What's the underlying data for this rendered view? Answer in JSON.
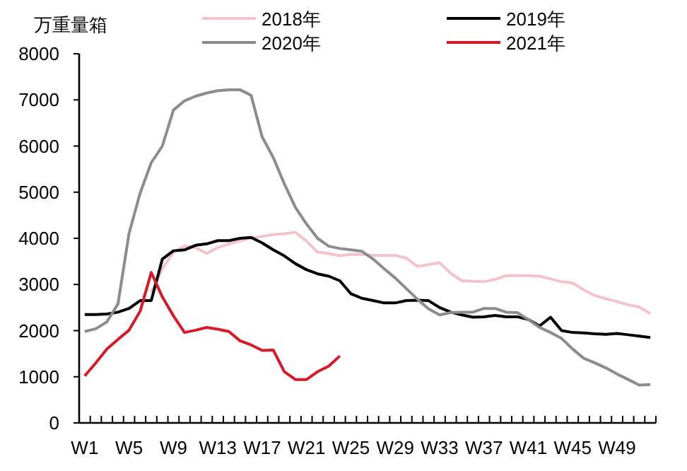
{
  "chart_data": {
    "type": "line",
    "ylabel": "万重量箱",
    "legend": "top",
    "grid": false,
    "ylim": [
      0,
      8000
    ],
    "yticks": [
      0,
      1000,
      2000,
      3000,
      4000,
      5000,
      6000,
      7000,
      8000
    ],
    "categories": [
      "W1",
      null,
      null,
      null,
      "W5",
      null,
      null,
      null,
      "W9",
      null,
      null,
      null,
      "W13",
      null,
      null,
      null,
      "W17",
      null,
      null,
      null,
      "W21",
      null,
      null,
      null,
      "W25",
      null,
      null,
      null,
      "W29",
      null,
      null,
      null,
      "W33",
      null,
      null,
      null,
      "W37",
      null,
      null,
      null,
      "W41",
      null,
      null,
      null,
      "W45",
      null,
      null,
      null,
      "W49",
      null,
      null,
      null
    ],
    "series": [
      {
        "name": "2018年",
        "color": "#f2c4cb",
        "values": [
          null,
          null,
          null,
          null,
          null,
          null,
          2830,
          3340,
          3700,
          3830,
          3800,
          3670,
          3800,
          3880,
          3940,
          4010,
          4040,
          4080,
          4100,
          4130,
          3940,
          3700,
          3670,
          3620,
          3650,
          3650,
          3630,
          3630,
          3630,
          3570,
          3390,
          3430,
          3470,
          3240,
          3080,
          3070,
          3060,
          3110,
          3190,
          3190,
          3190,
          3180,
          3120,
          3060,
          3030,
          2880,
          2760,
          2690,
          2630,
          2560,
          2510,
          2370
        ]
      },
      {
        "name": "2019年",
        "color": "#000000",
        "values": [
          2350,
          2350,
          2360,
          2400,
          2480,
          2650,
          2650,
          3550,
          3730,
          3750,
          3850,
          3880,
          3950,
          3950,
          4000,
          4020,
          3900,
          3750,
          3620,
          3450,
          3320,
          3230,
          3180,
          3080,
          2800,
          2700,
          2650,
          2600,
          2600,
          2650,
          2660,
          2650,
          2500,
          2400,
          2340,
          2290,
          2300,
          2330,
          2300,
          2300,
          2240,
          2100,
          2290,
          2000,
          1960,
          1950,
          1930,
          1920,
          1940,
          1910,
          1880,
          1850
        ]
      },
      {
        "name": "2020年",
        "color": "#8c8c8c",
        "values": [
          1980,
          2040,
          2190,
          2580,
          4110,
          4980,
          5640,
          6000,
          6780,
          6980,
          7080,
          7150,
          7200,
          7220,
          7220,
          7100,
          6200,
          5750,
          5180,
          4670,
          4310,
          4000,
          3830,
          3780,
          3750,
          3720,
          3550,
          3340,
          3140,
          2910,
          2680,
          2470,
          2340,
          2390,
          2400,
          2400,
          2480,
          2480,
          2400,
          2390,
          2240,
          2070,
          1960,
          1830,
          1600,
          1400,
          1300,
          1190,
          1060,
          940,
          820,
          830
        ]
      },
      {
        "name": "2021年",
        "color": "#d7192c",
        "values": [
          1020,
          1300,
          1600,
          1810,
          2010,
          2420,
          3260,
          2730,
          2320,
          1960,
          2010,
          2070,
          2030,
          1980,
          1780,
          1690,
          1570,
          1580,
          1110,
          940,
          940,
          1110,
          1230,
          1450,
          null,
          null,
          null,
          null,
          null,
          null,
          null,
          null,
          null,
          null,
          null,
          null,
          null,
          null,
          null,
          null,
          null,
          null,
          null,
          null,
          null,
          null,
          null,
          null,
          null,
          null,
          null,
          null
        ]
      }
    ]
  }
}
